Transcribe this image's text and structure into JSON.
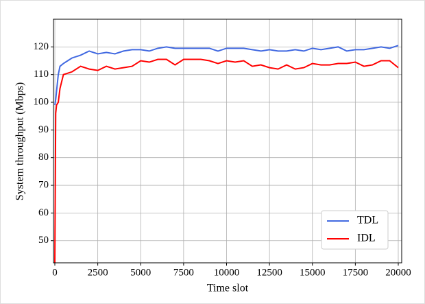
{
  "chart_data": {
    "type": "line",
    "xlabel": "Time slot",
    "ylabel": "System throughput (Mbps)",
    "x": [
      0,
      50,
      100,
      200,
      300,
      500,
      750,
      1000,
      1500,
      2000,
      2500,
      3000,
      3500,
      4000,
      4500,
      5000,
      5500,
      6000,
      6500,
      7000,
      7500,
      8000,
      8500,
      9000,
      9500,
      10000,
      10500,
      11000,
      11500,
      12000,
      12500,
      13000,
      13500,
      14000,
      14500,
      15000,
      15500,
      16000,
      16500,
      17000,
      17500,
      18000,
      18500,
      19000,
      19500,
      20000
    ],
    "series": [
      {
        "name": "TDL",
        "color": "#4169e1",
        "values": [
          99,
          101,
          104,
          110,
          113,
          114,
          115,
          116,
          117,
          118.5,
          117.5,
          118,
          117.5,
          118.5,
          119,
          119,
          118.5,
          119.5,
          120,
          119.5,
          119.5,
          119.5,
          119.5,
          119.5,
          118.5,
          119.5,
          119.5,
          119.5,
          119,
          118.5,
          119,
          118.5,
          118.5,
          119,
          118.5,
          119.5,
          119,
          119.5,
          120,
          118.5,
          119,
          119,
          119.5,
          120,
          119.5,
          120.5
        ]
      },
      {
        "name": "IDL",
        "color": "#ff0000",
        "values": [
          42,
          96,
          99,
          100,
          105,
          110,
          110.5,
          111,
          113,
          112,
          111.5,
          113,
          112,
          112.5,
          113,
          115,
          114.5,
          115.5,
          115.5,
          113.5,
          115.5,
          115.5,
          115.5,
          115,
          114,
          115,
          114.5,
          115,
          113,
          113.5,
          112.5,
          112,
          113.5,
          112,
          112.5,
          114,
          113.5,
          113.5,
          114,
          114,
          114.5,
          113,
          113.5,
          115,
          115,
          112.5
        ]
      }
    ],
    "xlim": [
      -80,
      20200
    ],
    "ylim": [
      42,
      130
    ],
    "xticks": [
      0,
      2500,
      5000,
      7500,
      10000,
      12500,
      15000,
      17500,
      20000
    ],
    "yticks": [
      50,
      60,
      70,
      80,
      90,
      100,
      110,
      120
    ],
    "grid": true,
    "legend": "lower right"
  }
}
